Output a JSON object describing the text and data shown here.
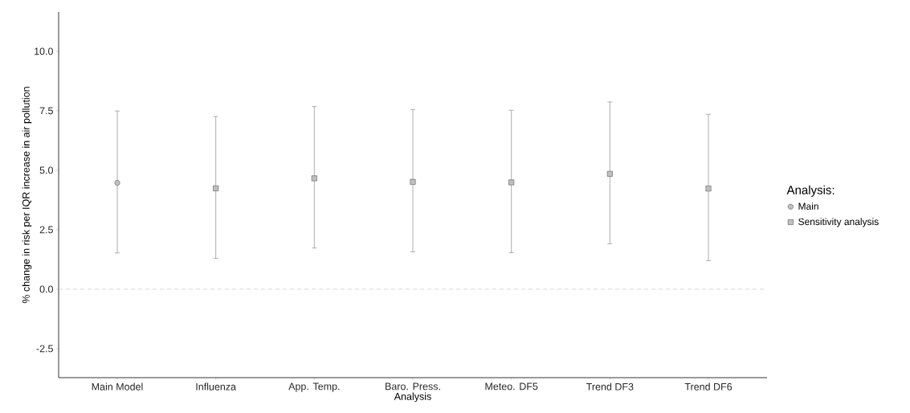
{
  "chart_data": {
    "type": "scatter",
    "xlabel": "Analysis",
    "ylabel": "% change in risk per IQR increase in air pollution",
    "legend_title": "Analysis:",
    "categories": [
      "Main Model",
      "Influenza",
      "App. Temp.",
      "Baro. Press.",
      "Meteo. DF5",
      "Trend DF3",
      "Trend DF6"
    ],
    "series": [
      {
        "name": "Main",
        "color": "#bfbfbf",
        "marker": "circle",
        "values": [
          4.47,
          null,
          null,
          null,
          null,
          null,
          null
        ],
        "errors": [
          [
            1.52,
            7.49
          ],
          null,
          null,
          null,
          null,
          null,
          null
        ]
      },
      {
        "name": "Sensitivity analysis",
        "color": "#bfbfbf",
        "marker": "square",
        "values": [
          null,
          4.24,
          4.66,
          4.51,
          4.49,
          4.85,
          4.23
        ],
        "errors": [
          null,
          [
            1.29,
            7.26
          ],
          [
            1.73,
            7.68
          ],
          [
            1.57,
            7.55
          ],
          [
            1.53,
            7.52
          ],
          [
            1.91,
            7.87
          ],
          [
            1.2,
            7.35
          ]
        ]
      }
    ],
    "ylim": [
      -3.72,
      11.65
    ],
    "yticks": [
      {
        "value": -2.5,
        "label": "-2.5"
      },
      {
        "value": 0,
        "label": "0.0"
      },
      {
        "value": 2.5,
        "label": "2.5"
      },
      {
        "value": 5,
        "label": "5.0"
      },
      {
        "value": 7.5,
        "label": "7.5"
      },
      {
        "value": 10,
        "label": "10.0"
      }
    ],
    "ref_lines": [
      {
        "axis": "y",
        "value": 0,
        "color": "#cccccc",
        "line_style": "dashed"
      }
    ],
    "grid": false,
    "legend": "right"
  }
}
